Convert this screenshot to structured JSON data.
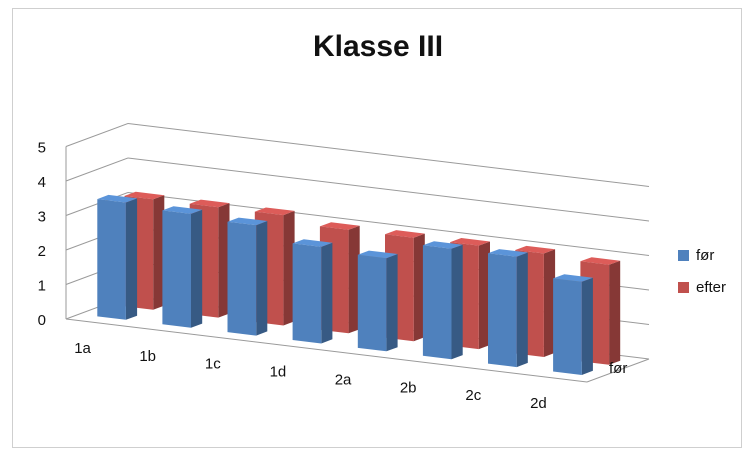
{
  "chart_data": {
    "type": "bar",
    "title": "Klasse III",
    "categories": [
      "1a",
      "1b",
      "1c",
      "1d",
      "2a",
      "2b",
      "2c",
      "2d"
    ],
    "series": [
      {
        "name": "før",
        "values": [
          3.4,
          3.3,
          3.2,
          2.8,
          2.7,
          3.2,
          3.2,
          2.7
        ]
      },
      {
        "name": "efter",
        "values": [
          3.2,
          3.2,
          3.2,
          3.0,
          3.0,
          3.0,
          3.0,
          2.9
        ]
      }
    ],
    "depth_axis_label": "før",
    "ylim": [
      0,
      5
    ],
    "yticks": [
      "0",
      "1",
      "2",
      "3",
      "4",
      "5"
    ],
    "grid": true,
    "legend_position": "right",
    "colors": {
      "før": "#4f81bd",
      "efter": "#c0504d"
    }
  }
}
